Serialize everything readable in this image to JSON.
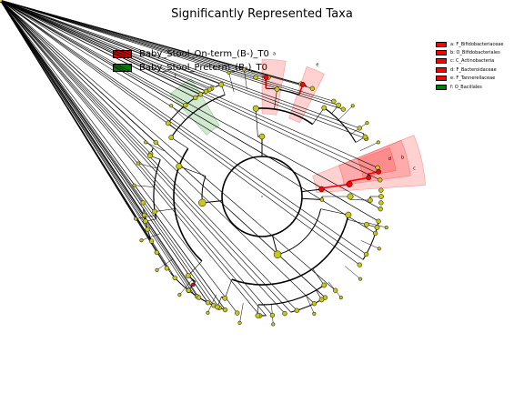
{
  "title": "Significantly Represented Taxa",
  "legend_classes": [
    {
      "label": "Baby_Stool_On-term_(B-)_T0",
      "color": "#ff0000"
    },
    {
      "label": "Baby_Stool_Preterm_(B-)_T0",
      "color": "#008000"
    }
  ],
  "taxa_legend": [
    {
      "label": "a: F_Bifidobacteriaceae",
      "color": "#ff0000"
    },
    {
      "label": "b: O_Bifidobacteriales",
      "color": "#ff0000"
    },
    {
      "label": "c: C_Actinobacteria",
      "color": "#ff0000"
    },
    {
      "label": "d: F_Bacteroidaceae",
      "color": "#ff0000"
    },
    {
      "label": "e: F_Tannerellaceae",
      "color": "#ff0000"
    },
    {
      "label": "f: O_Bacillales",
      "color": "#008000"
    }
  ],
  "clade_labels": [
    {
      "letter": "a",
      "color": "#ff0000"
    },
    {
      "letter": "b",
      "color": "#ff0000"
    },
    {
      "letter": "c",
      "color": "#ff0000"
    },
    {
      "letter": "d",
      "color": "#ff0000"
    },
    {
      "letter": "e",
      "color": "#ff0000"
    },
    {
      "letter": "f",
      "color": "#008000"
    }
  ],
  "colors": {
    "node_default": "#c8c815",
    "node_on_term": "#ff0000",
    "node_preterm": "#008000",
    "highlight_on_term": "#ff0000",
    "highlight_preterm": "#008000"
  }
}
